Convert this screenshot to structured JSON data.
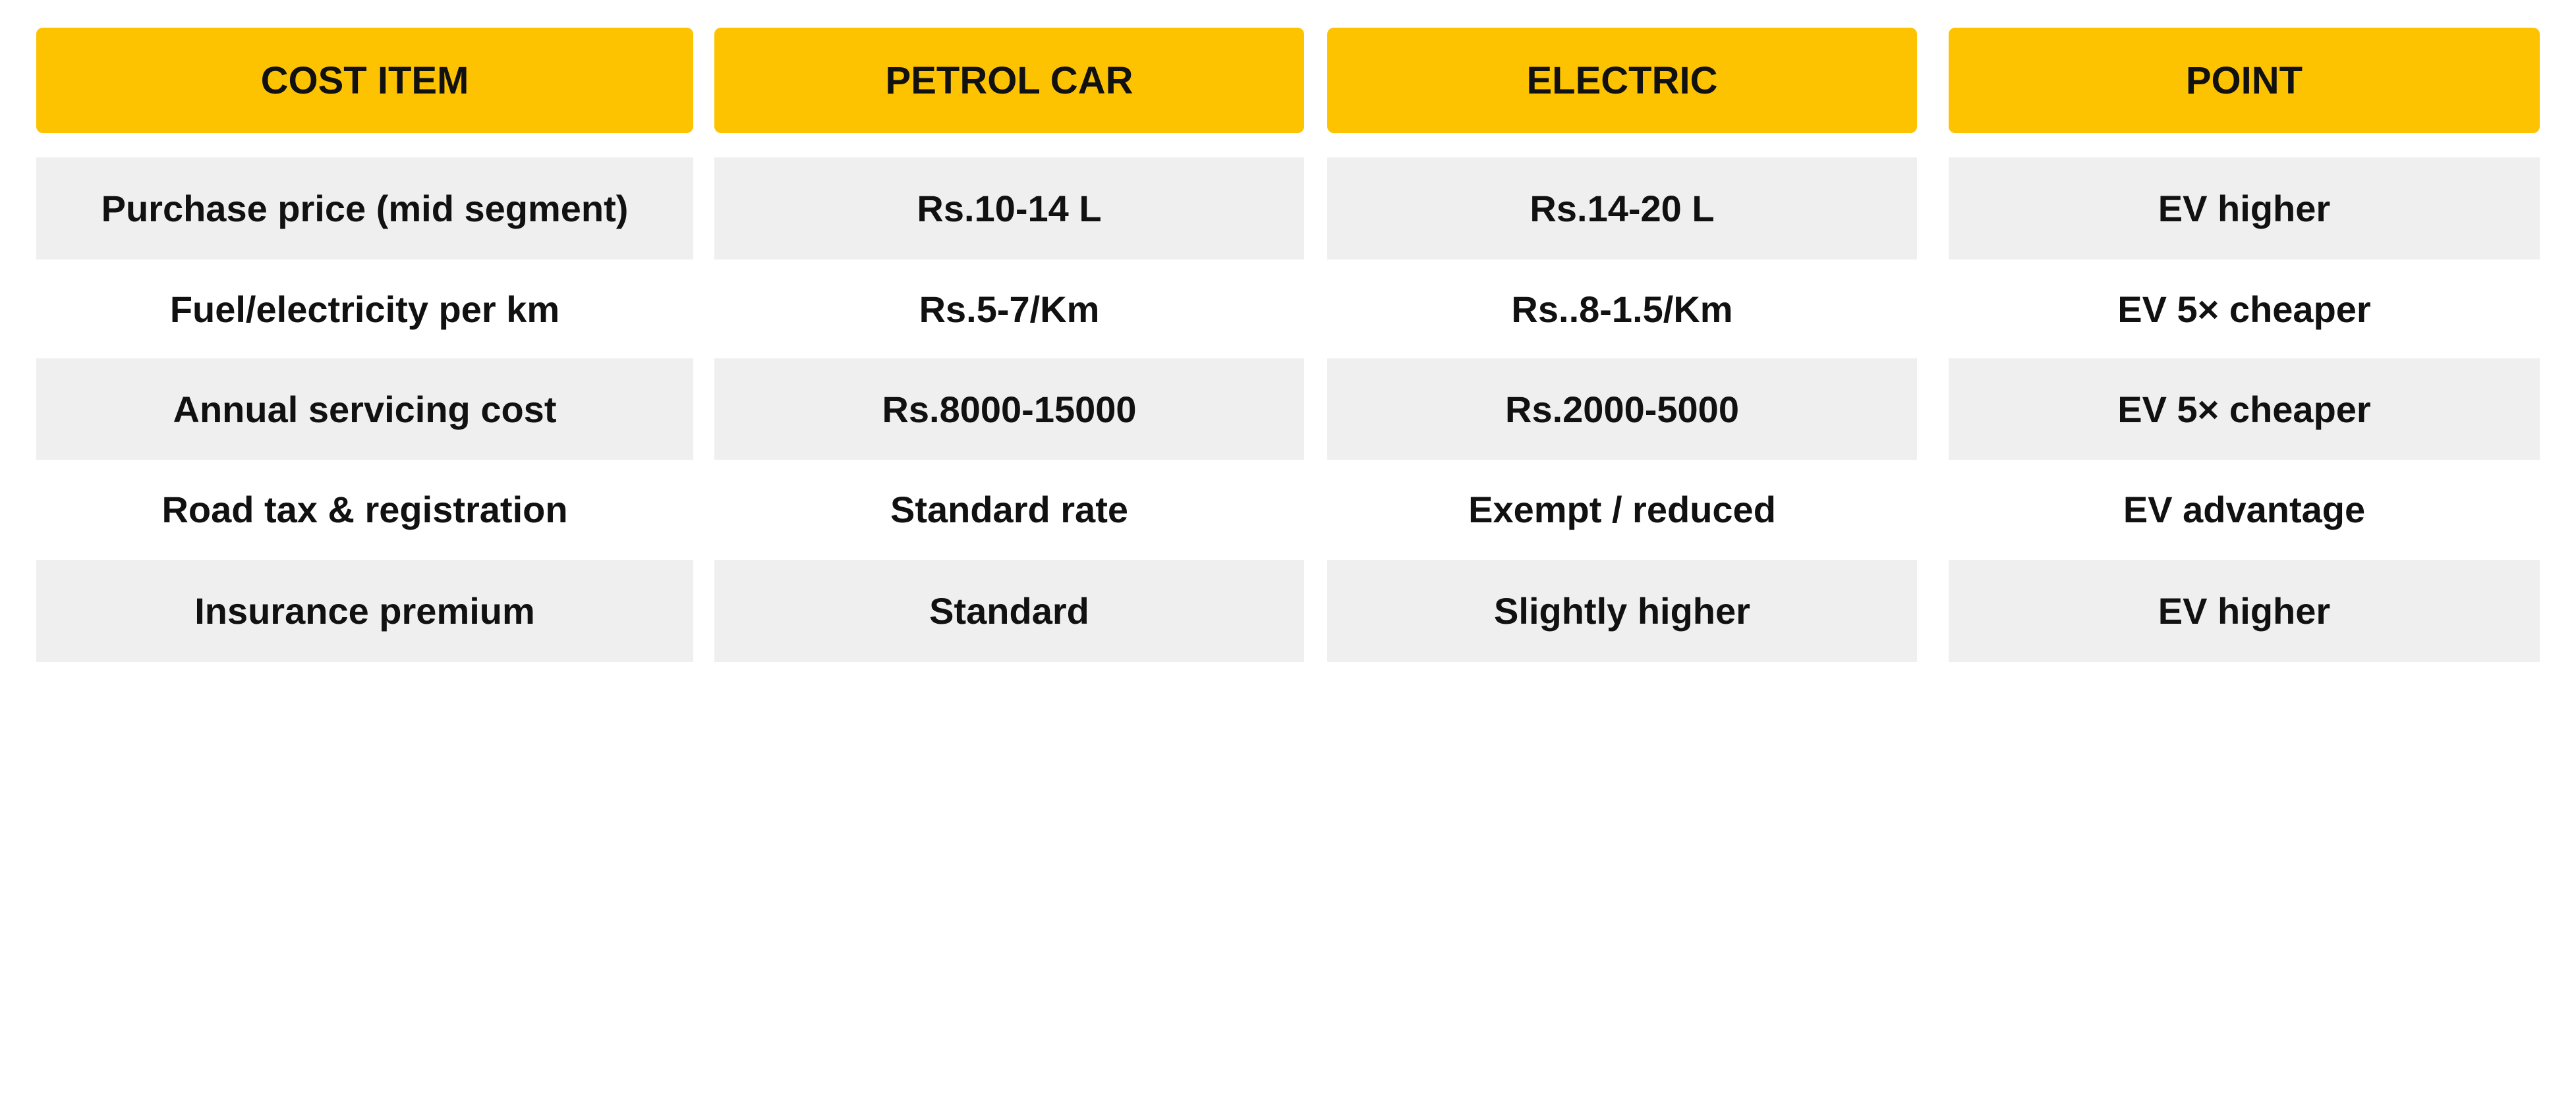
{
  "colors": {
    "header_bg": "#FDC300",
    "stripe_bg": "#EFEFEF",
    "text": "#111111"
  },
  "headers": [
    "COST ITEM",
    "PETROL CAR",
    "ELECTRIC",
    "POINT"
  ],
  "rows": [
    [
      "Purchase price (mid segment)",
      "Rs.10-14 L",
      "Rs.14-20 L",
      "EV higher"
    ],
    [
      "Fuel/electricity per km",
      "Rs.5-7/Km",
      "Rs..8-1.5/Km",
      "EV 5× cheaper"
    ],
    [
      "Annual servicing cost",
      "Rs.8000-15000",
      "Rs.2000-5000",
      "EV 5× cheaper"
    ],
    [
      "Road tax & registration",
      "Standard rate",
      "Exempt / reduced",
      "EV advantage"
    ],
    [
      "Insurance premium",
      "Standard",
      "Slightly higher",
      "EV higher"
    ]
  ]
}
